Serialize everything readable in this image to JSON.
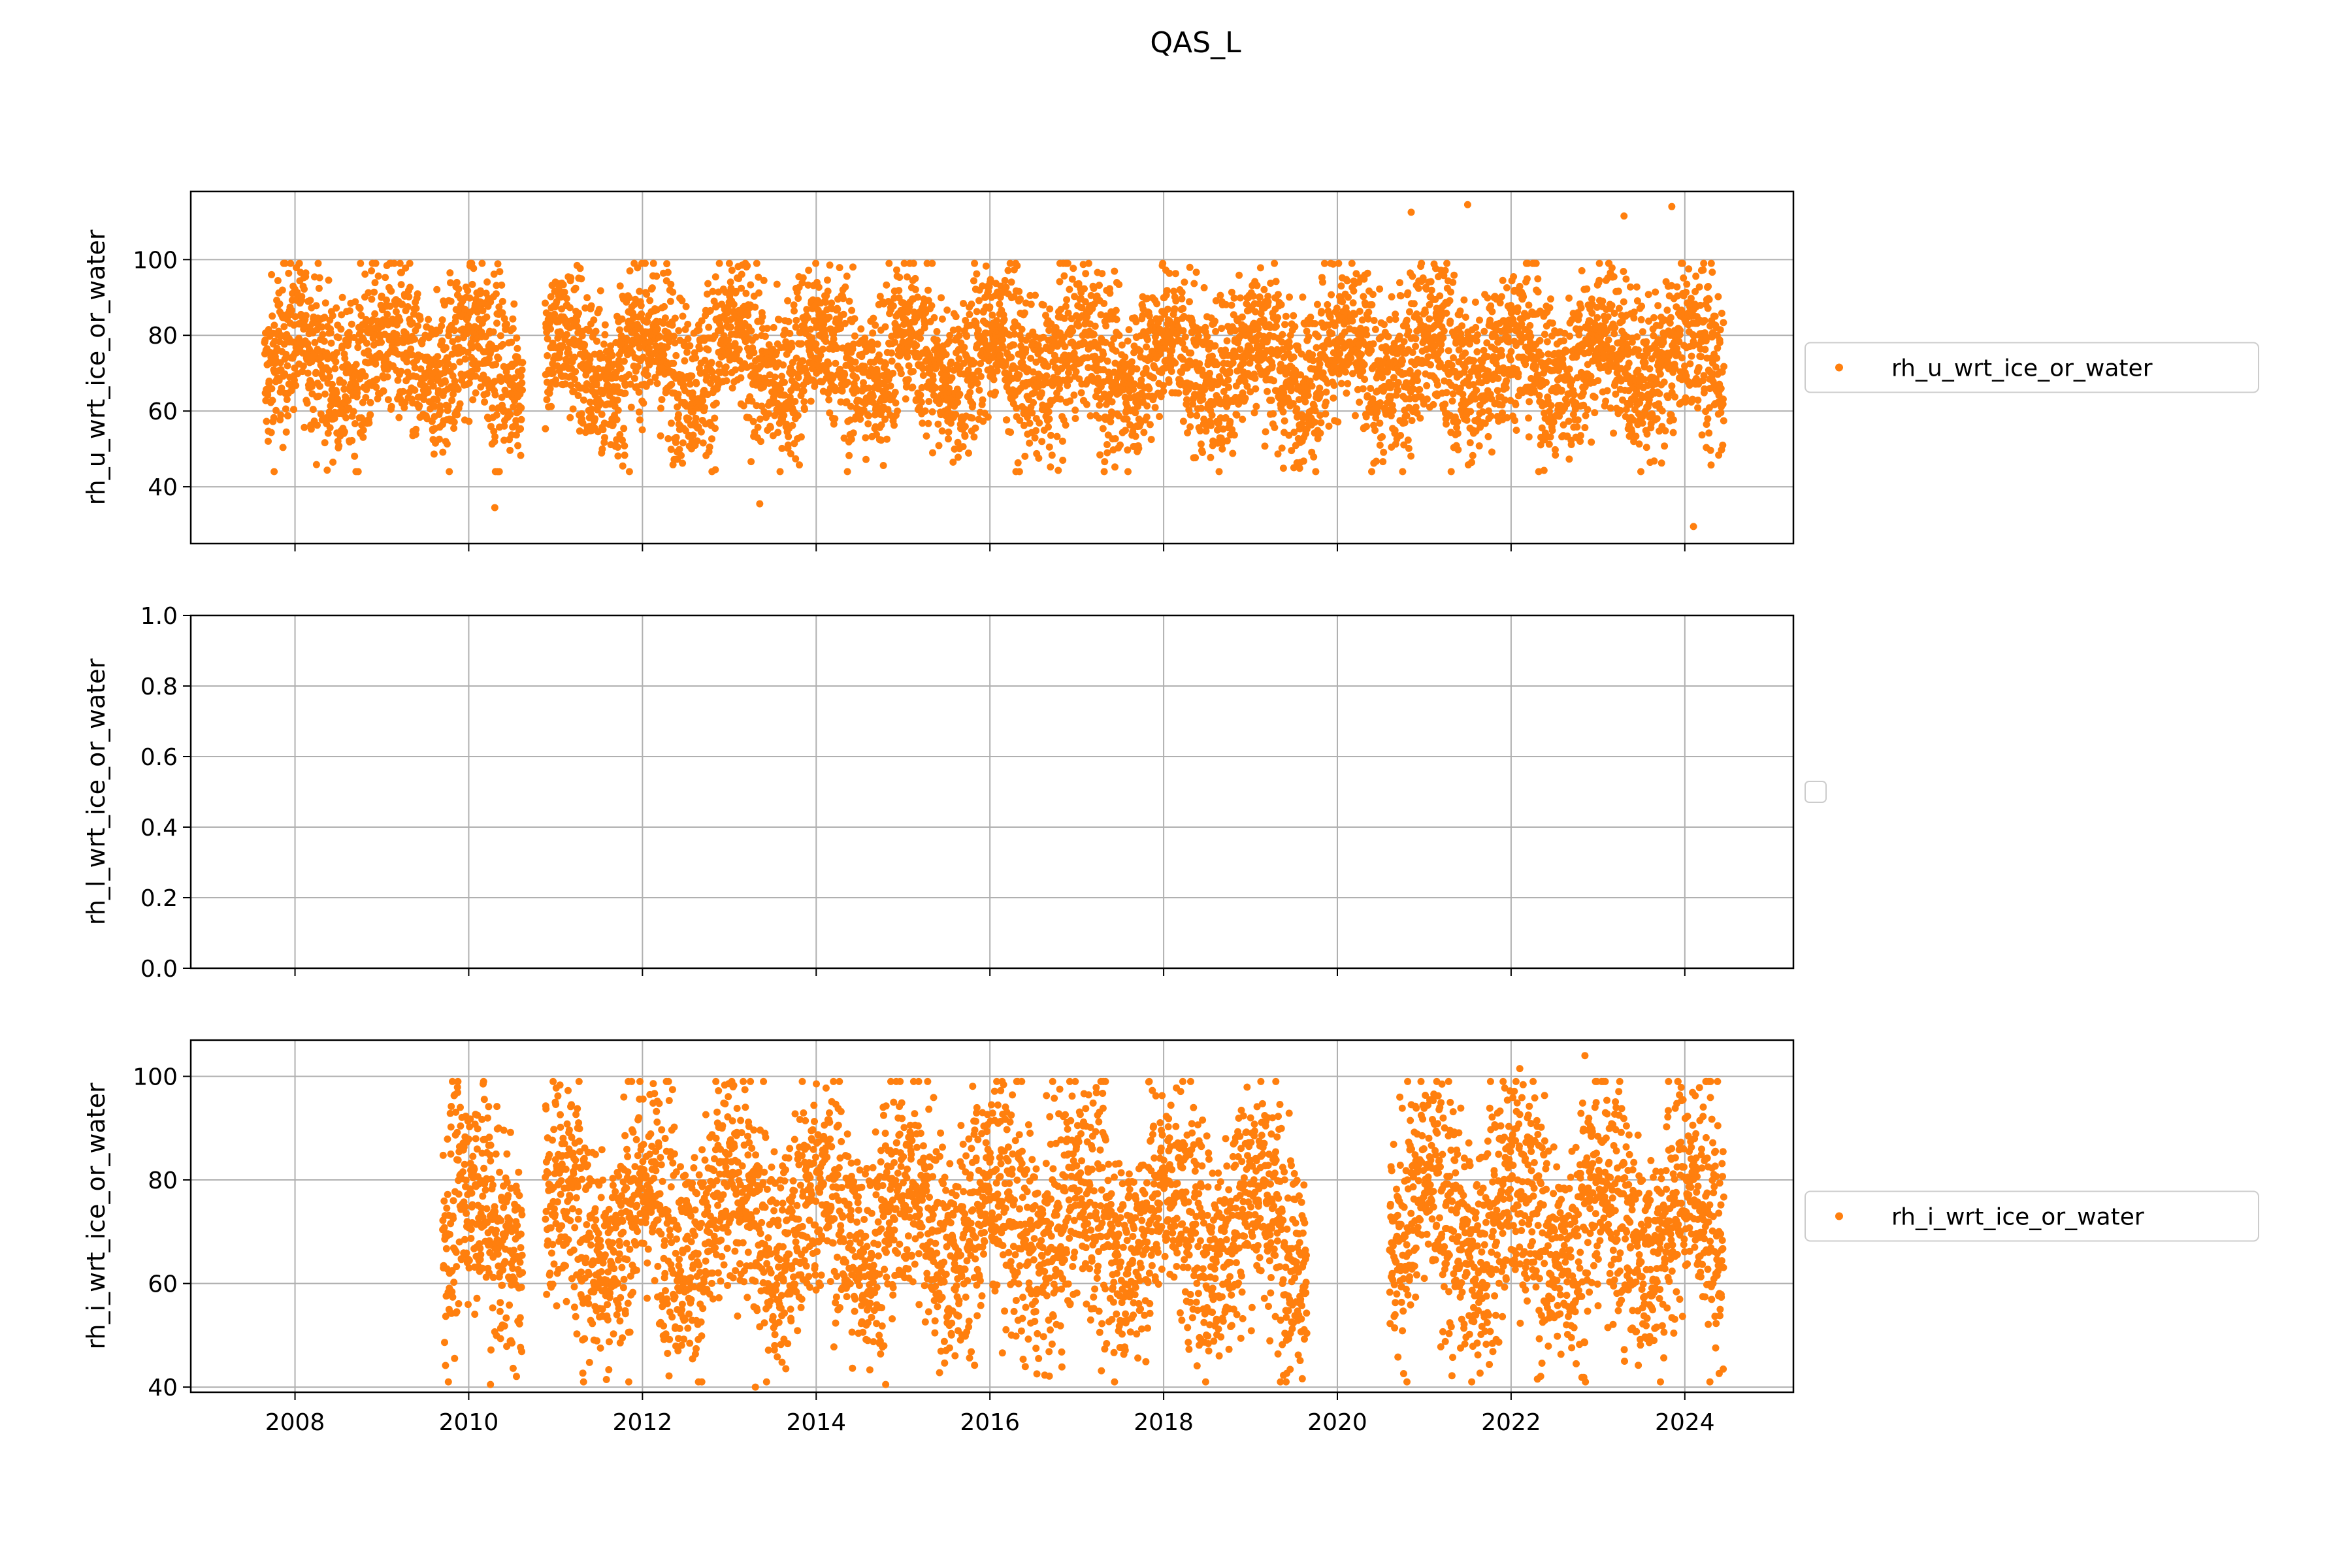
{
  "chart_data": {
    "type": "scatter",
    "title": "QAS_L",
    "colors": {
      "series": "#ff7f0e",
      "grid": "#b0b0b0",
      "legend_border": "#cccccc"
    },
    "shared_x": {
      "range": [
        2006.8,
        2025.25
      ],
      "ticks": [
        2008,
        2010,
        2012,
        2014,
        2016,
        2018,
        2020,
        2022,
        2024
      ],
      "tick_labels": [
        "2008",
        "2010",
        "2012",
        "2014",
        "2016",
        "2018",
        "2020",
        "2022",
        "2024"
      ]
    },
    "panels": [
      {
        "ylabel": "rh_u_wrt_ice_or_water",
        "ylim": [
          25,
          118
        ],
        "yticks": [
          40,
          60,
          80,
          100
        ],
        "ytick_labels": [
          "40",
          "60",
          "80",
          "100"
        ],
        "grid": true,
        "legend": "center-right",
        "series": [
          {
            "name": "rh_u_wrt_ice_or_water",
            "x_range": [
              2007.65,
              2024.45
            ],
            "typical_range": [
              50,
              97
            ],
            "seasonal_amplitude": 13,
            "gaps": [
              [
                2010.62,
                2010.88
              ]
            ],
            "outliers": [
              {
                "x": 2010.3,
                "y": 34.5
              },
              {
                "x": 2013.35,
                "y": 35.5
              },
              {
                "x": 2024.1,
                "y": 29.5
              },
              {
                "x": 2021.5,
                "y": 114.5
              },
              {
                "x": 2023.85,
                "y": 114
              },
              {
                "x": 2020.85,
                "y": 112.5
              },
              {
                "x": 2023.3,
                "y": 111.5
              }
            ]
          }
        ]
      },
      {
        "ylabel": "rh_l_wrt_ice_or_water",
        "ylim": [
          0,
          1
        ],
        "yticks": [
          0,
          0.2,
          0.4,
          0.6,
          0.8,
          1.0
        ],
        "ytick_labels": [
          "0.0",
          "0.2",
          "0.4",
          "0.6",
          "0.8",
          "1.0"
        ],
        "grid": true,
        "legend": "center-right (empty)",
        "series": []
      },
      {
        "ylabel": "rh_i_wrt_ice_or_water",
        "ylim": [
          39,
          107
        ],
        "yticks": [
          40,
          60,
          80,
          100
        ],
        "ytick_labels": [
          "40",
          "60",
          "80",
          "100"
        ],
        "grid": true,
        "legend": "center-right",
        "series": [
          {
            "name": "rh_i_wrt_ice_or_water",
            "x_range": [
              2009.7,
              2024.45
            ],
            "typical_range": [
              47,
              97
            ],
            "seasonal_amplitude": 14,
            "gaps": [
              [
                2010.62,
                2010.88
              ],
              [
                2019.65,
                2020.6
              ]
            ],
            "outliers": [
              {
                "x": 2022.85,
                "y": 104
              },
              {
                "x": 2022.1,
                "y": 101.5
              },
              {
                "x": 2010.25,
                "y": 40.5
              },
              {
                "x": 2014.8,
                "y": 40.5
              },
              {
                "x": 2013.3,
                "y": 40
              }
            ]
          }
        ]
      }
    ]
  }
}
